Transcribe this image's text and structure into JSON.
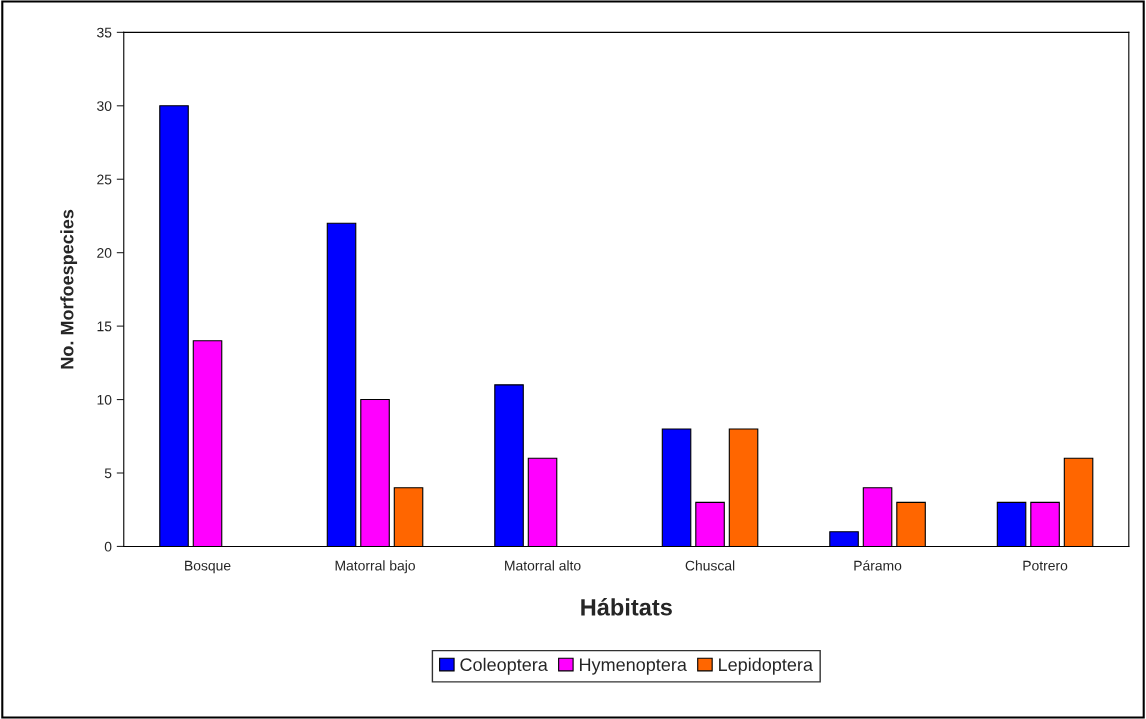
{
  "chart_data": {
    "type": "bar",
    "xlabel": "Hábitats",
    "ylabel": "No. Morfoespecies",
    "categories": [
      "Bosque",
      "Matorral bajo",
      "Matorral alto",
      "Chuscal",
      "Páramo",
      "Potrero"
    ],
    "series": [
      {
        "name": "Coleoptera",
        "color": "#0000ff",
        "values": [
          30,
          22,
          11,
          8,
          1,
          3
        ]
      },
      {
        "name": "Hymenoptera",
        "color": "#ff00ff",
        "values": [
          14,
          10,
          6,
          3,
          4,
          3
        ]
      },
      {
        "name": "Lepidoptera",
        "color": "#ff6600",
        "values": [
          null,
          4,
          null,
          8,
          3,
          6
        ]
      }
    ],
    "ylim": [
      0,
      35
    ],
    "yticks": [
      0,
      5,
      10,
      15,
      20,
      25,
      30,
      35
    ],
    "grid": false,
    "legend": "bottom"
  }
}
